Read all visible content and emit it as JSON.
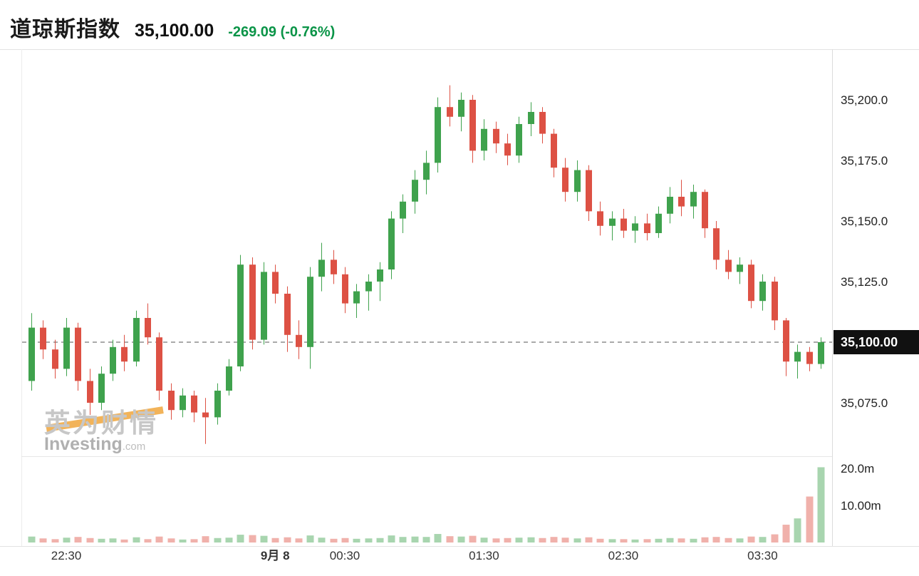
{
  "header": {
    "title": "道琼斯指数",
    "price": "35,100.00",
    "change": "-269.09 (-0.76%)",
    "change_color": "#0a9447"
  },
  "watermark": {
    "cjk": "英为财情",
    "latin": "Investing",
    "tld": ".com"
  },
  "chart_data": {
    "type": "candlestick",
    "title": "道琼斯指数",
    "last_price": 35100.0,
    "change": -269.09,
    "change_pct": -0.76,
    "up_color": "#3fa24d",
    "down_color": "#dd5144",
    "dashed_line_color": "#555555",
    "tag_bg": "#111111",
    "y_axis": {
      "ticks": [
        {
          "label": "35,200.0",
          "value": 35200
        },
        {
          "label": "35,175.0",
          "value": 35175
        },
        {
          "label": "35,150.0",
          "value": 35150
        },
        {
          "label": "35,125.0",
          "value": 35125
        },
        {
          "label": "35,075.0",
          "value": 35075
        }
      ],
      "last_price_label": "35,100.00"
    },
    "volume_axis": {
      "unit": "m",
      "ticks": [
        {
          "label": "20.0m",
          "value": 20
        },
        {
          "label": "10.00m",
          "value": 10
        }
      ]
    },
    "x_axis": {
      "labels": [
        {
          "label": "22:30",
          "index": 3,
          "bold": false
        },
        {
          "label": "9月 8",
          "index": 21,
          "bold": true
        },
        {
          "label": "00:30",
          "index": 27,
          "bold": false
        },
        {
          "label": "01:30",
          "index": 39,
          "bold": false
        },
        {
          "label": "02:30",
          "index": 51,
          "bold": false
        },
        {
          "label": "03:30",
          "index": 63,
          "bold": false
        }
      ]
    },
    "candles": [
      [
        "22:15",
        35084,
        35112,
        35080,
        35106,
        1.6
      ],
      [
        "22:20",
        35106,
        35109,
        35093,
        35097,
        1.1
      ],
      [
        "22:25",
        35097,
        35101,
        35085,
        35089,
        0.9
      ],
      [
        "22:30",
        35089,
        35110,
        35086,
        35106,
        1.3
      ],
      [
        "22:35",
        35106,
        35108,
        35080,
        35084,
        1.5
      ],
      [
        "22:40",
        35084,
        35089,
        35070,
        35075,
        1.2
      ],
      [
        "22:45",
        35075,
        35090,
        35072,
        35087,
        1.0
      ],
      [
        "22:50",
        35087,
        35101,
        35084,
        35098,
        1.1
      ],
      [
        "22:55",
        35098,
        35103,
        35088,
        35092,
        0.8
      ],
      [
        "23:00",
        35092,
        35113,
        35090,
        35110,
        1.4
      ],
      [
        "23:05",
        35110,
        35116,
        35099,
        35102,
        0.9
      ],
      [
        "23:10",
        35102,
        35104,
        35076,
        35080,
        1.6
      ],
      [
        "23:15",
        35080,
        35083,
        35068,
        35072,
        1.1
      ],
      [
        "23:20",
        35072,
        35081,
        35069,
        35078,
        0.8
      ],
      [
        "23:25",
        35078,
        35080,
        35067,
        35071,
        0.9
      ],
      [
        "23:30",
        35071,
        35077,
        35058,
        35069,
        1.7
      ],
      [
        "23:35",
        35069,
        35083,
        35066,
        35080,
        1.2
      ],
      [
        "23:40",
        35080,
        35093,
        35078,
        35090,
        1.3
      ],
      [
        "23:45",
        35090,
        35136,
        35088,
        35132,
        2.1
      ],
      [
        "23:50",
        35132,
        35135,
        35097,
        35101,
        2.0
      ],
      [
        "23:55",
        35101,
        35133,
        35099,
        35129,
        1.8
      ],
      [
        "00:00",
        35129,
        35132,
        35116,
        35120,
        1.2
      ],
      [
        "00:05",
        35120,
        35123,
        35096,
        35103,
        1.4
      ],
      [
        "00:10",
        35103,
        35109,
        35093,
        35098,
        1.1
      ],
      [
        "00:15",
        35098,
        35131,
        35089,
        35127,
        1.9
      ],
      [
        "00:20",
        35127,
        35141,
        35121,
        35134,
        1.3
      ],
      [
        "00:25",
        35134,
        35138,
        35124,
        35128,
        1.0
      ],
      [
        "00:30",
        35128,
        35131,
        35112,
        35116,
        1.2
      ],
      [
        "00:35",
        35116,
        35124,
        35110,
        35121,
        1.0
      ],
      [
        "00:40",
        35121,
        35128,
        35113,
        35125,
        1.1
      ],
      [
        "00:45",
        35125,
        35133,
        35117,
        35130,
        1.2
      ],
      [
        "00:50",
        35130,
        35154,
        35126,
        35151,
        1.9
      ],
      [
        "00:55",
        35151,
        35161,
        35145,
        35158,
        1.5
      ],
      [
        "01:00",
        35158,
        35171,
        35153,
        35167,
        1.6
      ],
      [
        "01:05",
        35167,
        35179,
        35161,
        35174,
        1.5
      ],
      [
        "01:10",
        35174,
        35201,
        35170,
        35197,
        2.3
      ],
      [
        "01:15",
        35197,
        35206,
        35189,
        35193,
        1.7
      ],
      [
        "01:20",
        35193,
        35203,
        35187,
        35200,
        1.6
      ],
      [
        "01:25",
        35200,
        35202,
        35174,
        35179,
        1.8
      ],
      [
        "01:30",
        35179,
        35192,
        35175,
        35188,
        1.3
      ],
      [
        "01:35",
        35188,
        35191,
        35178,
        35182,
        1.1
      ],
      [
        "01:40",
        35182,
        35186,
        35173,
        35177,
        1.2
      ],
      [
        "01:45",
        35177,
        35193,
        35174,
        35190,
        1.3
      ],
      [
        "01:50",
        35190,
        35199,
        35185,
        35195,
        1.4
      ],
      [
        "01:55",
        35195,
        35197,
        35182,
        35186,
        1.2
      ],
      [
        "02:00",
        35186,
        35188,
        35168,
        35172,
        1.5
      ],
      [
        "02:05",
        35172,
        35176,
        35158,
        35162,
        1.3
      ],
      [
        "02:10",
        35162,
        35175,
        35158,
        35171,
        1.1
      ],
      [
        "02:15",
        35171,
        35173,
        35150,
        35154,
        1.4
      ],
      [
        "02:20",
        35154,
        35158,
        35144,
        35148,
        1.0
      ],
      [
        "02:25",
        35148,
        35154,
        35142,
        35151,
        0.9
      ],
      [
        "02:30",
        35151,
        35155,
        35143,
        35146,
        0.9
      ],
      [
        "02:35",
        35146,
        35152,
        35141,
        35149,
        0.8
      ],
      [
        "02:40",
        35149,
        35153,
        35142,
        35145,
        0.9
      ],
      [
        "02:45",
        35145,
        35156,
        35143,
        35153,
        1.0
      ],
      [
        "02:50",
        35153,
        35164,
        35149,
        35160,
        1.2
      ],
      [
        "02:55",
        35160,
        35167,
        35152,
        35156,
        1.1
      ],
      [
        "03:00",
        35156,
        35165,
        35151,
        35162,
        1.0
      ],
      [
        "03:05",
        35162,
        35163,
        35143,
        35147,
        1.4
      ],
      [
        "03:10",
        35147,
        35150,
        35130,
        35134,
        1.5
      ],
      [
        "03:15",
        35134,
        35138,
        35126,
        35129,
        1.2
      ],
      [
        "03:20",
        35129,
        35135,
        35124,
        35132,
        1.1
      ],
      [
        "03:25",
        35132,
        35134,
        35114,
        35117,
        1.6
      ],
      [
        "03:30",
        35117,
        35128,
        35113,
        35125,
        1.5
      ],
      [
        "03:35",
        35125,
        35127,
        35105,
        35109,
        2.2
      ],
      [
        "03:40",
        35109,
        35110,
        35086,
        35092,
        4.8
      ],
      [
        "03:45",
        35092,
        35099,
        35085,
        35096,
        6.5
      ],
      [
        "03:50",
        35096,
        35098,
        35088,
        35091,
        12.4
      ],
      [
        "03:55",
        35091,
        35102,
        35089,
        35100,
        20.3
      ]
    ],
    "candle_columns": [
      "time",
      "open",
      "high",
      "low",
      "close",
      "volume_millions"
    ]
  }
}
